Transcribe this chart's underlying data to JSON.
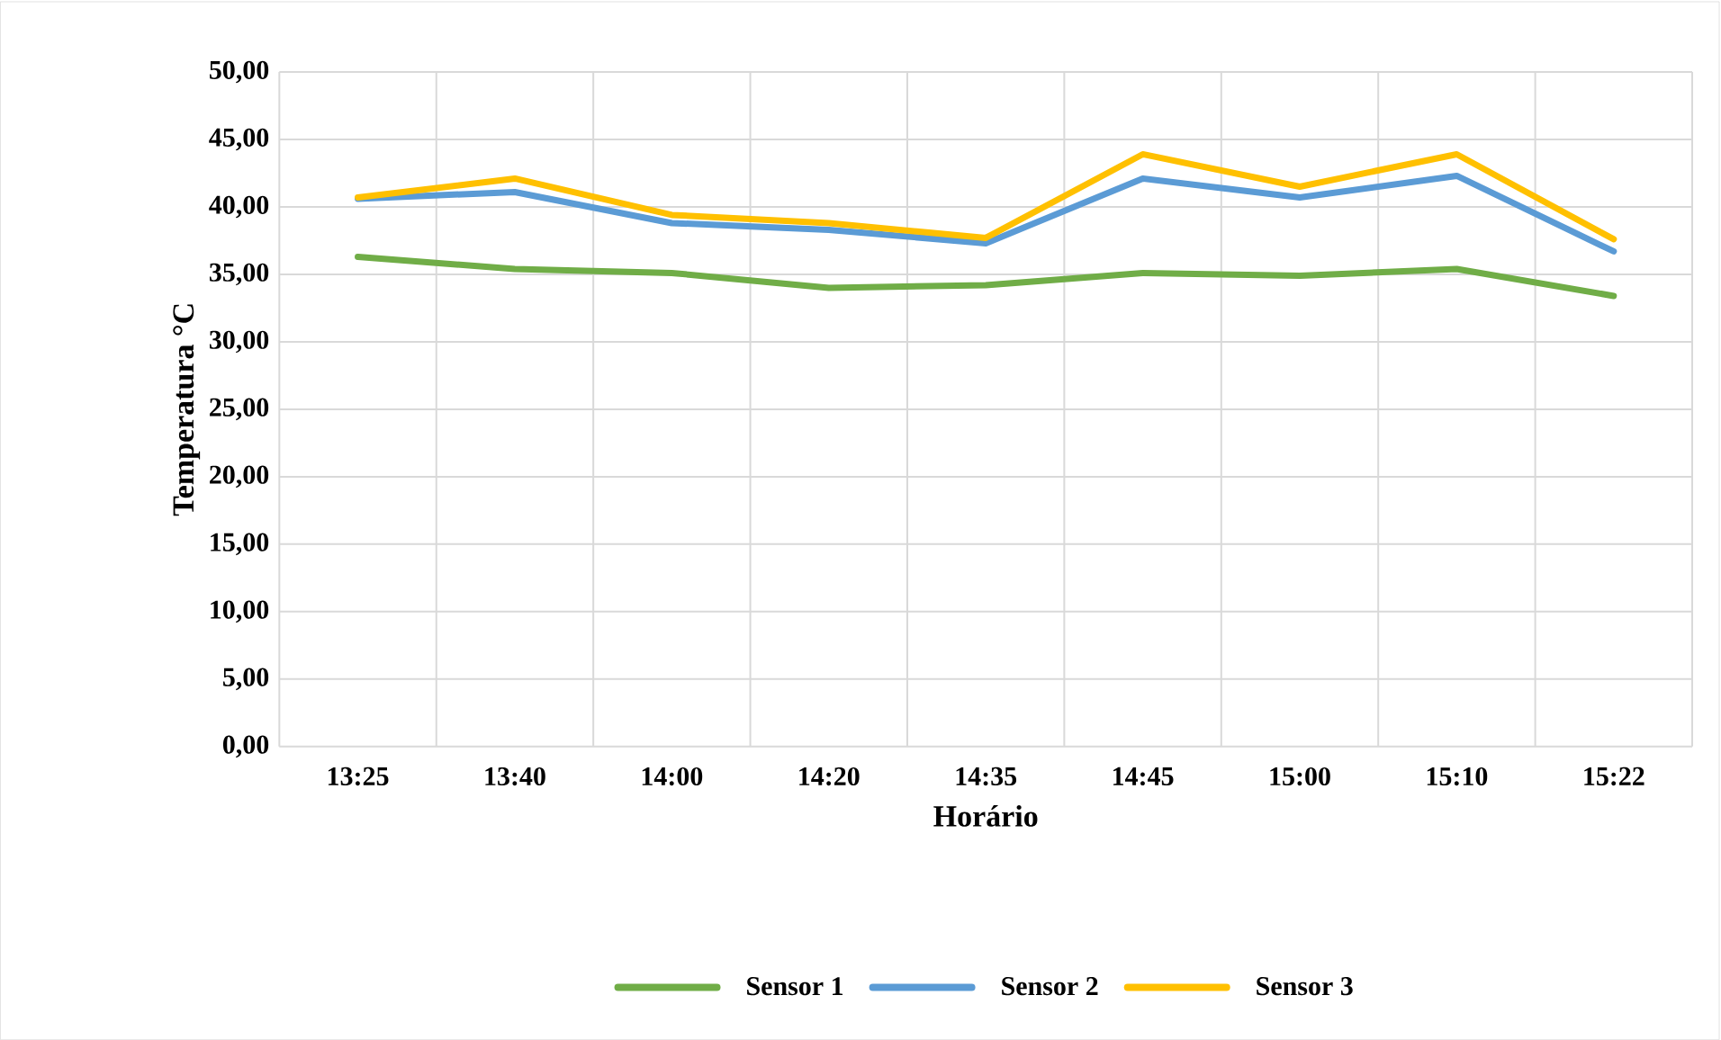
{
  "chart_data": {
    "type": "line",
    "xlabel": "Horário",
    "ylabel": "Temperatura °C",
    "categories": [
      "13:25",
      "13:40",
      "14:00",
      "14:20",
      "14:35",
      "14:45",
      "15:00",
      "15:10",
      "15:22"
    ],
    "series": [
      {
        "name": "Sensor 1",
        "color": "#70ad47",
        "values": [
          36.3,
          35.4,
          35.1,
          34.0,
          34.2,
          35.1,
          34.9,
          35.4,
          33.4
        ]
      },
      {
        "name": "Sensor 2",
        "color": "#5b9bd5",
        "values": [
          40.6,
          41.1,
          38.8,
          38.3,
          37.3,
          42.1,
          40.7,
          42.3,
          36.7
        ]
      },
      {
        "name": "Sensor 3",
        "color": "#ffc000",
        "values": [
          40.7,
          42.1,
          39.4,
          38.8,
          37.7,
          43.9,
          41.5,
          43.9,
          37.6
        ]
      }
    ],
    "ylim": [
      0,
      50
    ],
    "yticks": [
      {
        "value": 0,
        "label": "0,00"
      },
      {
        "value": 5,
        "label": "5,00"
      },
      {
        "value": 10,
        "label": "10,00"
      },
      {
        "value": 15,
        "label": "15,00"
      },
      {
        "value": 20,
        "label": "20,00"
      },
      {
        "value": 25,
        "label": "25,00"
      },
      {
        "value": 30,
        "label": "30,00"
      },
      {
        "value": 35,
        "label": "35,00"
      },
      {
        "value": 40,
        "label": "40,00"
      },
      {
        "value": 45,
        "label": "45,00"
      },
      {
        "value": 50,
        "label": "50,00"
      }
    ],
    "grid": true,
    "legend": "bottom",
    "marker": "none",
    "line_style": "solid"
  }
}
